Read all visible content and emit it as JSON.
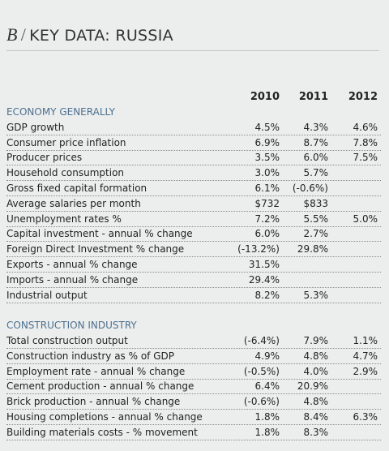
{
  "header": {
    "letter": "B",
    "separator": "/",
    "title": "KEY DATA: RUSSIA"
  },
  "table": {
    "columns": [
      "2010",
      "2011",
      "2012"
    ],
    "sections": [
      {
        "heading": "ECONOMY GENERALLY",
        "rows": [
          {
            "label": "GDP growth",
            "values": [
              "4.5%",
              "4.3%",
              "4.6%"
            ]
          },
          {
            "label": "Consumer price inflation",
            "values": [
              "6.9%",
              "8.7%",
              "7.8%"
            ]
          },
          {
            "label": "Producer prices",
            "values": [
              "3.5%",
              "6.0%",
              "7.5%"
            ]
          },
          {
            "label": "Household consumption",
            "values": [
              "3.0%",
              "5.7%",
              null
            ]
          },
          {
            "label": "Gross fixed capital formation",
            "values": [
              "6.1%",
              "(-0.6%)",
              null
            ]
          },
          {
            "label": "Average salaries per month",
            "values": [
              "$732",
              "$833",
              null
            ]
          },
          {
            "label": "Unemployment rates %",
            "values": [
              "7.2%",
              "5.5%",
              "5.0%"
            ]
          },
          {
            "label": "Capital investment - annual % change",
            "values": [
              "6.0%",
              "2.7%",
              null
            ]
          },
          {
            "label": "Foreign Direct Investment % change",
            "values": [
              "(-13.2%)",
              "29.8%",
              null
            ]
          },
          {
            "label": "Exports - annual % change",
            "values": [
              "31.5%",
              null,
              null
            ]
          },
          {
            "label": "Imports - annual % change",
            "values": [
              "29.4%",
              null,
              null
            ]
          },
          {
            "label": "Industrial output",
            "values": [
              "8.2%",
              "5.3%",
              null
            ]
          }
        ]
      },
      {
        "heading": "CONSTRUCTION INDUSTRY",
        "rows": [
          {
            "label": "Total construction output",
            "values": [
              "(-6.4%)",
              "7.9%",
              "1.1%"
            ]
          },
          {
            "label": "Construction industry as % of GDP",
            "values": [
              "4.9%",
              "4.8%",
              "4.7%"
            ]
          },
          {
            "label": "Employment rate - annual % change",
            "values": [
              "(-0.5%)",
              "4.0%",
              "2.9%"
            ]
          },
          {
            "label": "Cement production - annual % change",
            "values": [
              "6.4%",
              "20.9%",
              null
            ]
          },
          {
            "label": "Brick production - annual % change",
            "values": [
              "(-0.6%)",
              "4.8%",
              null
            ]
          },
          {
            "label": "Housing completions - annual % change",
            "values": [
              "1.8%",
              "8.4%",
              "6.3%"
            ]
          },
          {
            "label": "Building materials costs - % movement",
            "values": [
              "1.8%",
              "8.3%",
              null
            ]
          }
        ]
      }
    ]
  }
}
